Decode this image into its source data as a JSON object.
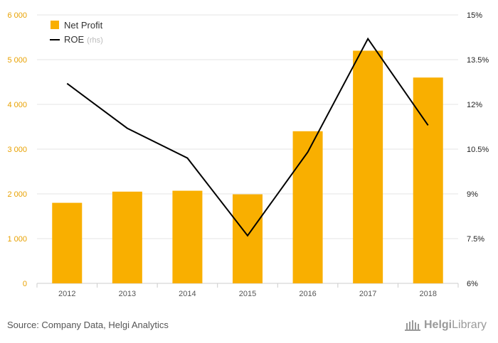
{
  "chart_data": {
    "type": "bar",
    "categories": [
      "2012",
      "2013",
      "2014",
      "2015",
      "2016",
      "2017",
      "2018"
    ],
    "series": [
      {
        "name": "Net Profit",
        "type": "bar",
        "axis": "left",
        "values": [
          1800,
          2050,
          2070,
          1990,
          3400,
          5200,
          4600
        ]
      },
      {
        "name": "ROE",
        "type": "line",
        "axis": "right",
        "values": [
          12.7,
          11.2,
          10.2,
          7.6,
          10.4,
          14.2,
          11.3
        ]
      }
    ],
    "legend": [
      {
        "label": "Net Profit",
        "suffix": ""
      },
      {
        "label": "ROE",
        "suffix": "(rhs)"
      }
    ],
    "legend_position": "top-left",
    "left_axis": {
      "ylim": [
        0,
        6000
      ],
      "ticks": [
        0,
        1000,
        2000,
        3000,
        4000,
        5000,
        6000
      ],
      "tick_labels": [
        "0",
        "1 000",
        "2 000",
        "3 000",
        "4 000",
        "5 000",
        "6 000"
      ]
    },
    "right_axis": {
      "ylim": [
        6,
        15
      ],
      "ticks": [
        6,
        7.5,
        9,
        10.5,
        12,
        13.5,
        15
      ],
      "tick_labels": [
        "6%",
        "7.5%",
        "9%",
        "10.5%",
        "12%",
        "13.5%",
        "15%"
      ]
    },
    "grid": true,
    "colors": {
      "bar": "#F9AF00",
      "line": "#000000",
      "left_axis_text": "#E8A100",
      "right_axis_text": "#222222",
      "grid": "#e6e6e6",
      "legend_muted": "#bbbbbb"
    }
  },
  "footer": {
    "source": "Source: Company Data, Helgi Analytics",
    "logo_icon": "library-building-icon",
    "logo_text_bold": "Helgi",
    "logo_text": "Library"
  }
}
